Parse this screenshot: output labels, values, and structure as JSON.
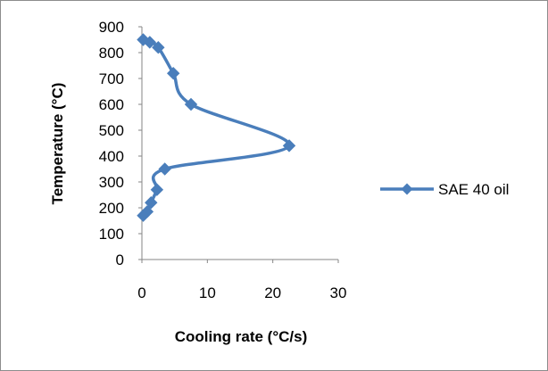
{
  "chart_data": {
    "type": "scatter",
    "title": "",
    "xlabel": "Cooling rate (°C/s)",
    "ylabel": "Temperature (°C)",
    "xlim": [
      0,
      30
    ],
    "ylim": [
      0,
      900
    ],
    "xticks": [
      "0",
      "10",
      "20",
      "30"
    ],
    "yticks": [
      "0",
      "100",
      "200",
      "300",
      "400",
      "500",
      "600",
      "700",
      "800",
      "900"
    ],
    "grid": false,
    "legend_position": "right",
    "smooth_lines": true,
    "series": [
      {
        "name": "SAE 40 oil",
        "color": "#4a7ebb",
        "marker": "diamond",
        "points": [
          {
            "x": 0.2,
            "y": 850
          },
          {
            "x": 1.2,
            "y": 840
          },
          {
            "x": 2.5,
            "y": 820
          },
          {
            "x": 4.8,
            "y": 720
          },
          {
            "x": 7.5,
            "y": 600
          },
          {
            "x": 22.5,
            "y": 440
          },
          {
            "x": 3.5,
            "y": 350
          },
          {
            "x": 2.3,
            "y": 270
          },
          {
            "x": 1.4,
            "y": 220
          },
          {
            "x": 0.8,
            "y": 185
          },
          {
            "x": 0.2,
            "y": 170
          }
        ]
      }
    ]
  }
}
